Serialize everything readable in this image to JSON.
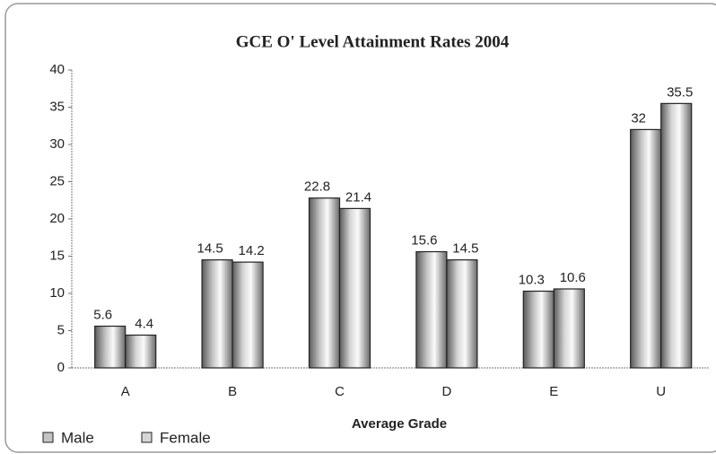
{
  "chart_data": {
    "type": "bar",
    "title": "GCE O' Level Attainment Rates 2004",
    "x_label": "Average Grade",
    "categories": [
      "A",
      "B",
      "C",
      "D",
      "E",
      "U"
    ],
    "series": [
      {
        "name": "Male",
        "color": "#c4c4c4",
        "values": [
          5.6,
          14.5,
          22.8,
          15.6,
          10.3,
          32
        ]
      },
      {
        "name": "Female",
        "color": "#d6d6d6",
        "values": [
          4.4,
          14.2,
          21.4,
          14.5,
          10.6,
          35.5
        ]
      }
    ],
    "ylim": [
      0,
      40
    ],
    "yticks": [
      0,
      5,
      10,
      15,
      20,
      25,
      30,
      35,
      40
    ],
    "grid": false,
    "legend": "bottom-left"
  }
}
